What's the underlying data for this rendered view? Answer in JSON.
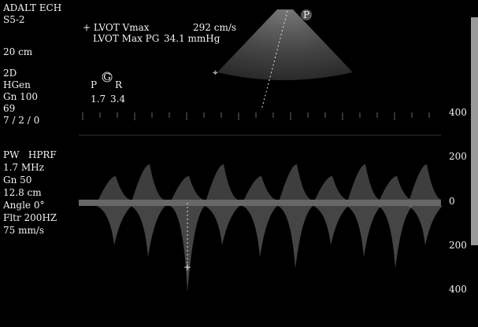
{
  "header": {
    "preset": "ADALT ECH",
    "probe": "S5-2",
    "depth": "20 cm"
  },
  "measurements": [
    {
      "label": "+ LVOT Vmax",
      "value": "292 cm/s"
    },
    {
      "label": "LVOT Max PG",
      "value": "34.1 mmHg"
    }
  ],
  "mode_2d": {
    "lines": [
      "2D",
      "HGen",
      "Gn 100",
      "69",
      "7 / 2 / 0"
    ]
  },
  "orientation": {
    "left": "P",
    "center": "G",
    "right": "R",
    "left_value": "1.7",
    "right_value": "3.4"
  },
  "doppler": {
    "lines": [
      "PW   HPRF",
      "1.7 MHz",
      "Gn 50",
      "12.8 cm",
      "Angle 0°",
      "Fltr 200HZ",
      "75 mm/s"
    ]
  },
  "sector_marker": "P",
  "velocity_scale": [
    "400",
    "200",
    "0",
    "200",
    "400"
  ]
}
